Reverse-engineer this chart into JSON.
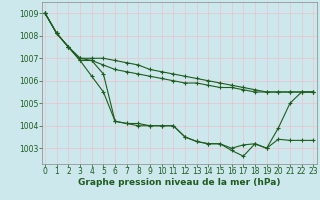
{
  "background_color": "#cce8ec",
  "grid_color": "#e8c8d0",
  "line_color": "#1e5c1e",
  "marker_color": "#1e5c1e",
  "xlabel": "Graphe pression niveau de la mer (hPa)",
  "xlabel_fontsize": 6.5,
  "tick_fontsize": 5.5,
  "ylim": [
    1002.3,
    1009.5
  ],
  "xlim": [
    -0.3,
    23.3
  ],
  "yticks": [
    1003,
    1004,
    1005,
    1006,
    1007,
    1008,
    1009
  ],
  "xticks": [
    0,
    1,
    2,
    3,
    4,
    5,
    6,
    7,
    8,
    9,
    10,
    11,
    12,
    13,
    14,
    15,
    16,
    17,
    18,
    19,
    20,
    21,
    22,
    23
  ],
  "series": [
    [
      1009.0,
      1008.1,
      1007.5,
      1006.9,
      1006.2,
      1005.5,
      1004.2,
      1004.1,
      1004.1,
      1004.0,
      1004.0,
      1004.0,
      1003.5,
      1003.3,
      1003.2,
      1003.2,
      1002.9,
      1002.65,
      1003.2,
      1003.0,
      1003.9,
      1005.0,
      1005.5,
      1005.5
    ],
    [
      1009.0,
      1008.1,
      1007.5,
      1006.9,
      1006.9,
      1006.7,
      1006.5,
      1006.4,
      1006.3,
      1006.2,
      1006.1,
      1006.0,
      1005.9,
      1005.9,
      1005.8,
      1005.7,
      1005.7,
      1005.6,
      1005.5,
      1005.5,
      1005.5,
      1005.5,
      1005.5,
      1005.5
    ],
    [
      1009.0,
      1008.1,
      1007.5,
      1007.0,
      1007.0,
      1007.0,
      1006.9,
      1006.8,
      1006.7,
      1006.5,
      1006.4,
      1006.3,
      1006.2,
      1006.1,
      1006.0,
      1005.9,
      1005.8,
      1005.7,
      1005.6,
      1005.5,
      1005.5,
      1005.5,
      1005.5,
      1005.5
    ],
    [
      1009.0,
      1008.1,
      1007.5,
      1007.0,
      1006.9,
      1006.3,
      1004.2,
      1004.1,
      1004.0,
      1004.0,
      1004.0,
      1004.0,
      1003.5,
      1003.3,
      1003.2,
      1003.2,
      1003.0,
      1003.15,
      1003.2,
      1003.0,
      1003.4,
      1003.35,
      1003.35,
      1003.35
    ]
  ]
}
